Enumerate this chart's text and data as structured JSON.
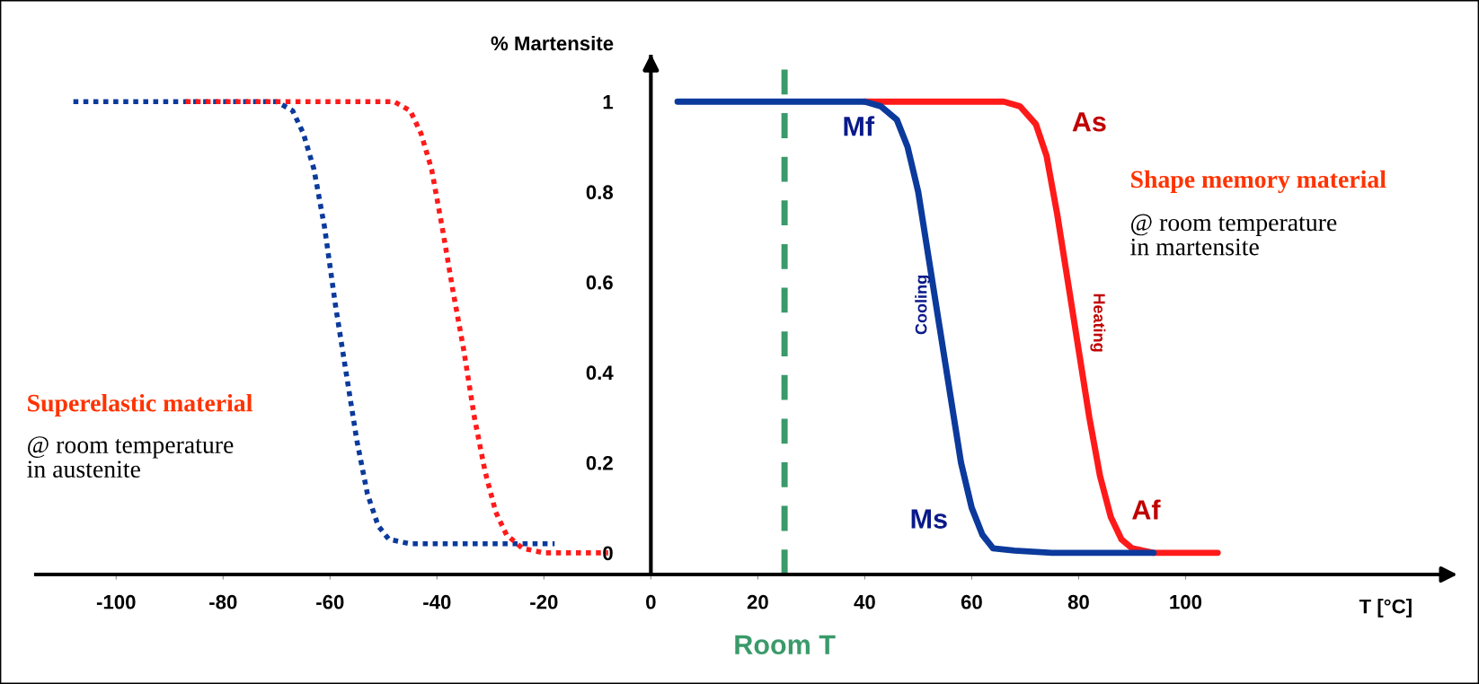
{
  "chart_data": {
    "type": "line",
    "xlabel": "T [°C]",
    "ylabel": "% Martensite",
    "series": [
      {
        "color": "#0b3a9c",
        "line_style": "dotted",
        "x": [
          -108,
          -70,
          -67,
          -65,
          -63,
          -61,
          -59,
          -57,
          -55,
          -53,
          -51,
          -49,
          -45,
          -40,
          -18
        ],
        "values": [
          1,
          1,
          0.98,
          0.93,
          0.85,
          0.72,
          0.55,
          0.4,
          0.25,
          0.13,
          0.06,
          0.03,
          0.02,
          0.02,
          0.02
        ]
      },
      {
        "color": "#ff1a1a",
        "line_style": "dotted",
        "x": [
          -87,
          -48,
          -45,
          -43,
          -41,
          -39,
          -37,
          -35,
          -33,
          -31,
          -29,
          -27,
          -24,
          -20,
          -8
        ],
        "values": [
          1,
          1,
          0.98,
          0.93,
          0.85,
          0.72,
          0.58,
          0.45,
          0.3,
          0.18,
          0.09,
          0.04,
          0.01,
          0,
          0
        ]
      },
      {
        "color": "#ff1a1a",
        "line_style": "solid",
        "x": [
          40,
          66,
          69,
          72,
          74,
          76,
          78,
          80,
          82,
          84,
          86,
          88,
          90,
          94,
          106
        ],
        "values": [
          1,
          1,
          0.99,
          0.95,
          0.88,
          0.75,
          0.6,
          0.45,
          0.3,
          0.17,
          0.08,
          0.03,
          0.01,
          0,
          0
        ]
      },
      {
        "color": "#0b3a9c",
        "line_style": "solid",
        "x": [
          5,
          40,
          43,
          46,
          48,
          50,
          52,
          54,
          56,
          58,
          60,
          62,
          64,
          68,
          75,
          94
        ],
        "values": [
          1,
          1,
          0.99,
          0.96,
          0.9,
          0.8,
          0.65,
          0.5,
          0.35,
          0.2,
          0.1,
          0.04,
          0.01,
          0.005,
          0,
          0
        ]
      }
    ],
    "xlim": [
      -115,
      150
    ],
    "ylim": [
      -0.048,
      1.1
    ],
    "xticks": [
      -100,
      -80,
      -60,
      -40,
      -20,
      0,
      20,
      40,
      60,
      80,
      100
    ],
    "yticks": [
      0,
      0.2,
      0.4,
      0.6,
      0.8,
      1
    ],
    "ref_lines": [
      {
        "axis": "x",
        "value": 25,
        "label": "Room T",
        "color": "#3a9a6a",
        "line_style": "dashed"
      }
    ],
    "annotations": [
      "Mf",
      "Ms",
      "As",
      "Af",
      "Cooling",
      "Heating",
      "Shape memory material",
      "@ room temperature\nin martensite",
      "Superelastic material",
      "@ room temperature\nin austenite"
    ],
    "grid": false,
    "legend": false
  }
}
